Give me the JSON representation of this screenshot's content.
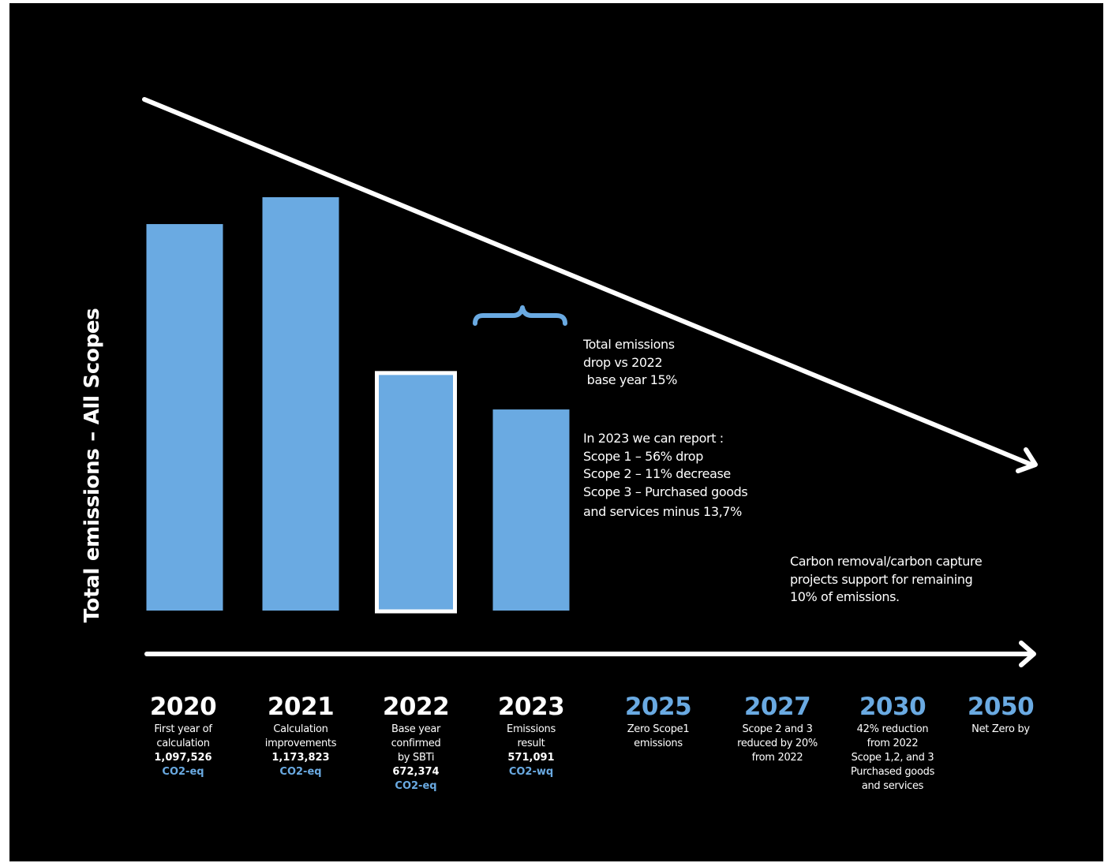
{
  "colors": {
    "background": "#000000",
    "bar": "#6aaae2",
    "accent": "#6aaae2",
    "text": "#ffffff",
    "highlight_outline": "#ffffff"
  },
  "chart_data": {
    "type": "bar",
    "ylabel": "Total emissions – All Scopes",
    "categories": [
      "2020",
      "2021",
      "2022",
      "2023"
    ],
    "values": [
      1097526,
      1173823,
      672374,
      571091
    ],
    "highlighted_category": "2022",
    "bracket_over": "2023"
  },
  "notes": {
    "drop": [
      "Total emissions",
      "drop vs 2022",
      " base year 15%"
    ],
    "report": [
      "In 2023 we can report :",
      "Scope 1 – 56% drop",
      "Scope 2 – 11% decrease",
      "Scope 3 – Purchased goods",
      "and services minus 13,7%"
    ],
    "carbon": [
      "Carbon removal/carbon capture",
      "projects support for remaining",
      "10% of emissions."
    ]
  },
  "timeline": [
    {
      "year": "2020",
      "desc": [
        "First year of",
        "calculation"
      ],
      "value": "1,097,526",
      "unit": "CO2-eq",
      "future": false
    },
    {
      "year": "2021",
      "desc": [
        "Calculation",
        "improvements"
      ],
      "value": "1,173,823",
      "unit": "CO2-eq",
      "future": false
    },
    {
      "year": "2022",
      "desc": [
        "Base year",
        "confirmed",
        "by SBTi"
      ],
      "value": "672,374",
      "unit": "CO2-eq",
      "future": false
    },
    {
      "year": "2023",
      "desc": [
        "Emissions",
        "result"
      ],
      "value": "571,091",
      "unit": "CO2-wq",
      "future": false
    },
    {
      "year": "2025",
      "desc": [
        "Zero Scope1",
        "emissions"
      ],
      "future": true
    },
    {
      "year": "2027",
      "desc": [
        "Scope 2 and 3",
        "reduced by 20%",
        "from 2022"
      ],
      "future": true
    },
    {
      "year": "2030",
      "desc": [
        "42% reduction",
        "from 2022",
        "Scope 1,2, and 3",
        "Purchased goods",
        "and services"
      ],
      "future": true
    },
    {
      "year": "2050",
      "desc": [
        "Net Zero by"
      ],
      "future": true
    }
  ]
}
